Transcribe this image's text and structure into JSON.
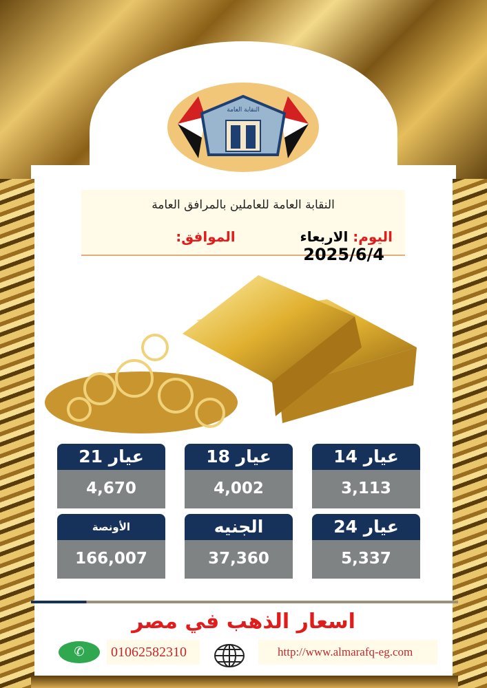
{
  "logo": {
    "text": "النقابة العامة للعاملين بالمرافق العامة"
  },
  "header": {
    "title": "النقابة العامة للعاملين بالمرافق العامة",
    "day_label": "اليوم:",
    "day_value": "الاربعاء",
    "date_label": "الموافق:",
    "date_value": "2025/6/4"
  },
  "prices": [
    {
      "label": "عيار 21",
      "value": "4,670"
    },
    {
      "label": "عيار 18",
      "value": "4,002"
    },
    {
      "label": "عيار 14",
      "value": "3,113"
    },
    {
      "label": "الأونصة",
      "value": "166,007"
    },
    {
      "label": "الجنيه",
      "value": "37,360"
    },
    {
      "label": "عيار 24",
      "value": "5,337"
    }
  ],
  "footer": {
    "title": "اسعار الذهب في مصر",
    "phone": "01062582310",
    "website": "http://www.almarafq-eg.com"
  },
  "icons": {
    "phone": "whatsapp-icon",
    "web": "globe-icon"
  },
  "colors": {
    "card_header": "#17325a",
    "card_body": "#7f8384",
    "accent_red": "#e01d1d",
    "gold": "#d4a83a"
  }
}
